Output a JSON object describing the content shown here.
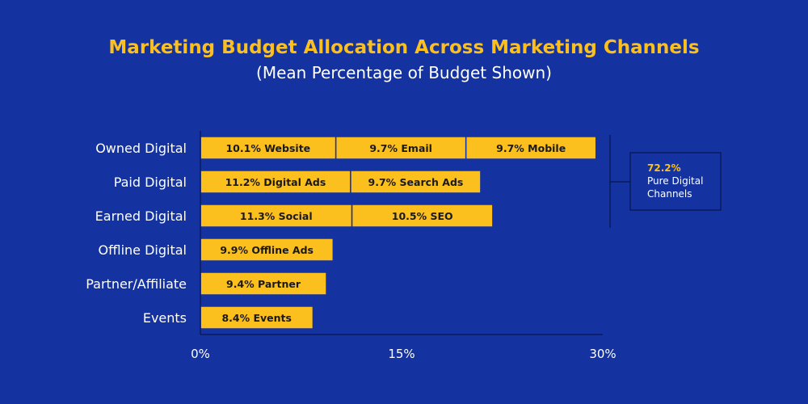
{
  "title": "Marketing Budget Allocation Across Marketing Channels",
  "subtitle": "(Mean Percentage of Budget Shown)",
  "colors": {
    "background": "#1433a0",
    "bar": "#fbbf1e",
    "bar_border": "#1433a0",
    "title": "#fbbf1e",
    "text": "#ffffff",
    "bar_text": "#1a1a1a"
  },
  "chart_data": {
    "type": "bar",
    "orientation": "horizontal",
    "stacked": true,
    "xlim": [
      0,
      30
    ],
    "x_ticks": [
      {
        "value": 0,
        "label": "0%"
      },
      {
        "value": 15,
        "label": "15%"
      },
      {
        "value": 30,
        "label": "30%"
      }
    ],
    "grid": false,
    "categories": [
      "Owned Digital",
      "Paid Digital",
      "Earned Digital",
      "Offline Digital",
      "Partner/Affiliate",
      "Events"
    ],
    "segments": [
      [
        {
          "value": 10.1,
          "label": "10.1% Website"
        },
        {
          "value": 9.7,
          "label": "9.7% Email"
        },
        {
          "value": 9.7,
          "label": "9.7% Mobile"
        }
      ],
      [
        {
          "value": 11.2,
          "label": "11.2% Digital Ads"
        },
        {
          "value": 9.7,
          "label": "9.7% Search Ads"
        }
      ],
      [
        {
          "value": 11.3,
          "label": "11.3% Social"
        },
        {
          "value": 10.5,
          "label": "10.5% SEO"
        }
      ],
      [
        {
          "value": 9.9,
          "label": "9.9% Offline Ads"
        }
      ],
      [
        {
          "value": 9.4,
          "label": "9.4% Partner"
        }
      ],
      [
        {
          "value": 8.4,
          "label": "8.4% Events"
        }
      ]
    ],
    "annotation": {
      "value": "72.2%",
      "lines": [
        "Pure Digital",
        "Channels"
      ],
      "covers_categories": [
        "Owned Digital",
        "Paid Digital",
        "Earned Digital"
      ]
    }
  }
}
